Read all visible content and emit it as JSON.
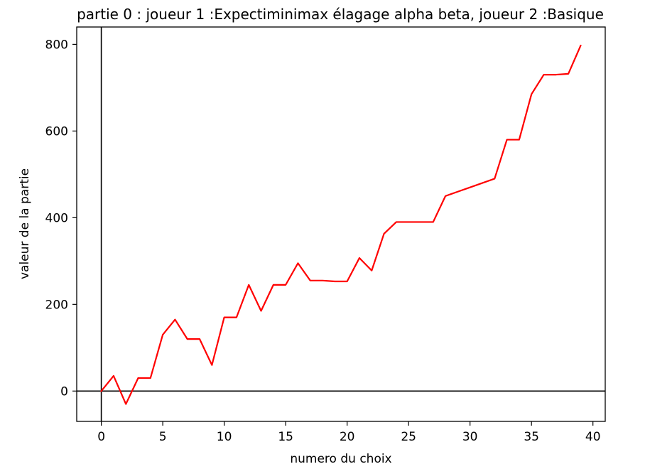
{
  "chart_data": {
    "type": "line",
    "title": "partie 0 : joueur 1 :Expectiminimax élagage alpha beta, joueur 2 :Basique",
    "xlabel": "numero du choix",
    "ylabel": "valeur de la partie",
    "xlim": [
      -2,
      41
    ],
    "ylim": [
      -70,
      840
    ],
    "xticks": [
      0,
      5,
      10,
      15,
      20,
      25,
      30,
      35,
      40
    ],
    "yticks": [
      0,
      200,
      400,
      600,
      800
    ],
    "grid": false,
    "reference_lines": {
      "x": 0,
      "y": 0
    },
    "series": [
      {
        "name": "valeur",
        "color": "#ff0000",
        "x": [
          0,
          1,
          2,
          3,
          4,
          5,
          6,
          7,
          8,
          9,
          10,
          11,
          12,
          13,
          14,
          15,
          16,
          17,
          18,
          19,
          20,
          21,
          22,
          23,
          24,
          25,
          26,
          27,
          28,
          29,
          30,
          31,
          32,
          33,
          34,
          35,
          36,
          37,
          38,
          39
        ],
        "values": [
          0,
          35,
          -30,
          30,
          30,
          130,
          165,
          120,
          120,
          60,
          170,
          170,
          245,
          185,
          245,
          245,
          295,
          255,
          255,
          253,
          253,
          307,
          278,
          363,
          390,
          390,
          390,
          390,
          450,
          460,
          470,
          480,
          490,
          580,
          580,
          685,
          730,
          730,
          732,
          797
        ]
      }
    ]
  }
}
